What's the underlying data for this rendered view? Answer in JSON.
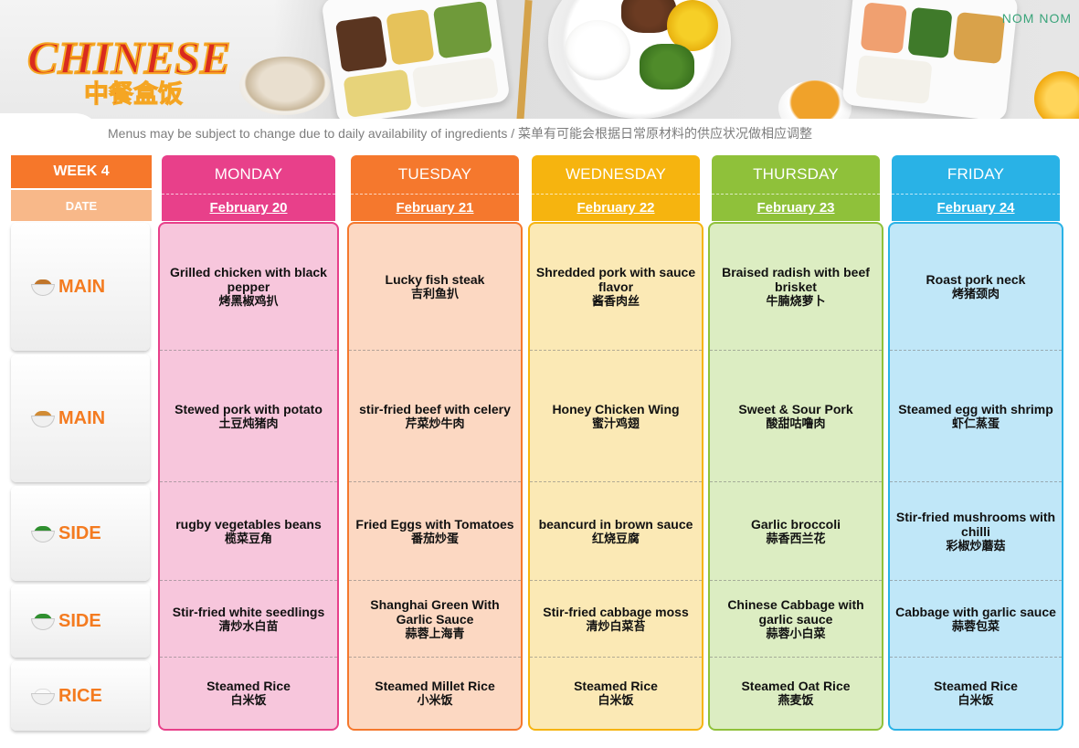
{
  "header": {
    "logo_text": "CHINESE",
    "logo_subtitle": "中餐盒饭",
    "brand": "NOM NOM",
    "notice": "Menus may be subject to change due to daily availability of ingredients / 菜单有可能会根据日常原材料的供应状况做相应调整"
  },
  "table": {
    "week_label": "WEEK 4",
    "date_label": "DATE",
    "categories": [
      {
        "label": "MAIN",
        "icon": "meat-dish-icon"
      },
      {
        "label": "MAIN",
        "icon": "meat-dish-icon"
      },
      {
        "label": "SIDE",
        "icon": "vegetable-dish-icon"
      },
      {
        "label": "SIDE",
        "icon": "vegetable-dish-icon"
      },
      {
        "label": "RICE",
        "icon": "rice-bowl-icon"
      }
    ],
    "days": [
      {
        "name": "MONDAY",
        "date": "February 20",
        "color": "#e8408a",
        "light": "#f7c6dc",
        "dishes": [
          {
            "en": "Grilled chicken with black pepper",
            "zh": "烤黑椒鸡扒"
          },
          {
            "en": "Stewed pork with potato",
            "zh": "土豆炖猪肉"
          },
          {
            "en": "rugby vegetables beans",
            "zh": "榄菜豆角"
          },
          {
            "en": "Stir-fried white seedlings",
            "zh": "清炒水白苗"
          },
          {
            "en": "Steamed Rice",
            "zh": "白米饭"
          }
        ]
      },
      {
        "name": "TUESDAY",
        "date": "February 21",
        "color": "#f5782d",
        "light": "#fcd8c2",
        "dishes": [
          {
            "en": "Lucky fish steak",
            "zh": "吉利鱼扒"
          },
          {
            "en": "stir-fried beef with celery",
            "zh": "芹菜炒牛肉"
          },
          {
            "en": "Fried Eggs with Tomatoes",
            "zh": "番茄炒蛋"
          },
          {
            "en": "Shanghai Green With Garlic Sauce",
            "zh": "蒜蓉上海青"
          },
          {
            "en": "Steamed Millet Rice",
            "zh": "小米饭"
          }
        ]
      },
      {
        "name": "WEDNESDAY",
        "date": "February 22",
        "color": "#f6b40f",
        "light": "#fbe9b5",
        "dishes": [
          {
            "en": "Shredded pork with sauce flavor",
            "zh": "酱香肉丝"
          },
          {
            "en": "Honey Chicken Wing",
            "zh": "蜜汁鸡翅"
          },
          {
            "en": "beancurd in brown sauce",
            "zh": "红烧豆腐"
          },
          {
            "en": "Stir-fried cabbage moss",
            "zh": "清炒白菜苔"
          },
          {
            "en": "Steamed Rice",
            "zh": "白米饭"
          }
        ]
      },
      {
        "name": "THURSDAY",
        "date": "February 23",
        "color": "#8fc13a",
        "light": "#dcedc2",
        "dishes": [
          {
            "en": "Braised radish with beef brisket",
            "zh": "牛腩烧萝卜"
          },
          {
            "en": "Sweet & Sour Pork",
            "zh": "酸甜咕噜肉"
          },
          {
            "en": "Garlic broccoli",
            "zh": "蒜香西兰花"
          },
          {
            "en": "Chinese Cabbage with garlic sauce",
            "zh": "蒜蓉小白菜"
          },
          {
            "en": "Steamed Oat Rice",
            "zh": "燕麦饭"
          }
        ]
      },
      {
        "name": "FRIDAY",
        "date": "February 24",
        "color": "#29b2e6",
        "light": "#c0e7f8",
        "dishes": [
          {
            "en": "Roast pork neck",
            "zh": "烤猪颈肉"
          },
          {
            "en": "Steamed egg with shrimp",
            "zh": "虾仁蒸蛋"
          },
          {
            "en": "Stir-fried mushrooms with chilli",
            "zh": "彩椒炒蘑菇"
          },
          {
            "en": "Cabbage with garlic sauce",
            "zh": "蒜蓉包菜"
          },
          {
            "en": "Steamed Rice",
            "zh": "白米饭"
          }
        ]
      }
    ]
  }
}
